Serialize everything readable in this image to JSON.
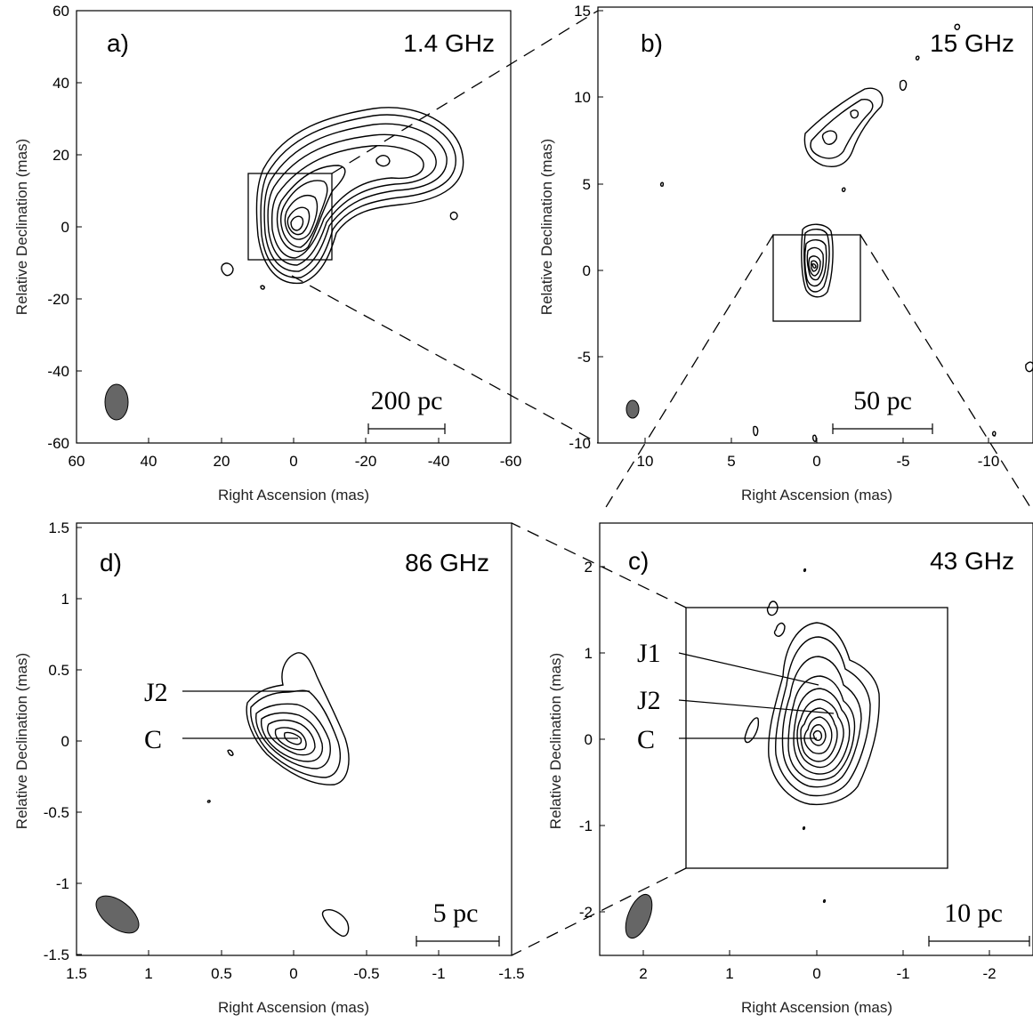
{
  "panels": {
    "a": {
      "tag": "a)",
      "freq": "1.4 GHz",
      "scale": "200 pc",
      "xlabel": "Right Ascension (mas)",
      "ylabel": "Relative Declination (mas)",
      "xticks": [
        "60",
        "40",
        "20",
        "0",
        "-20",
        "-40",
        "-60"
      ],
      "yticks": [
        "60",
        "40",
        "20",
        "0",
        "-20",
        "-40",
        "-60"
      ]
    },
    "b": {
      "tag": "b)",
      "freq": "15 GHz",
      "scale": "50 pc",
      "xlabel": "Right Ascension (mas)",
      "ylabel": "Relative Declination (mas)",
      "xticks": [
        "10",
        "5",
        "0",
        "-5",
        "-10"
      ],
      "yticks": [
        "15",
        "10",
        "5",
        "0",
        "-5",
        "-10"
      ]
    },
    "c": {
      "tag": "c)",
      "freq": "43 GHz",
      "scale": "10 pc",
      "xlabel": "Right Ascension (mas)",
      "ylabel": "Relative Declination (mas)",
      "xticks": [
        "2",
        "1",
        "0",
        "-1",
        "-2"
      ],
      "yticks": [
        "2",
        "1",
        "0",
        "-1",
        "-2"
      ],
      "components": [
        "J1",
        "J2",
        "C"
      ]
    },
    "d": {
      "tag": "d)",
      "freq": "86 GHz",
      "scale": "5 pc",
      "xlabel": "Right Ascension (mas)",
      "ylabel": "Relative Declination (mas)",
      "xticks": [
        "1.5",
        "1",
        "0.5",
        "0",
        "-0.5",
        "-1",
        "-1.5"
      ],
      "yticks": [
        "1.5",
        "1",
        "0.5",
        "0",
        "-0.5",
        "-1",
        "-1.5"
      ],
      "components": [
        "J2",
        "C"
      ]
    }
  },
  "colors": {
    "beam_fill": "#666666",
    "ink": "#000000"
  }
}
